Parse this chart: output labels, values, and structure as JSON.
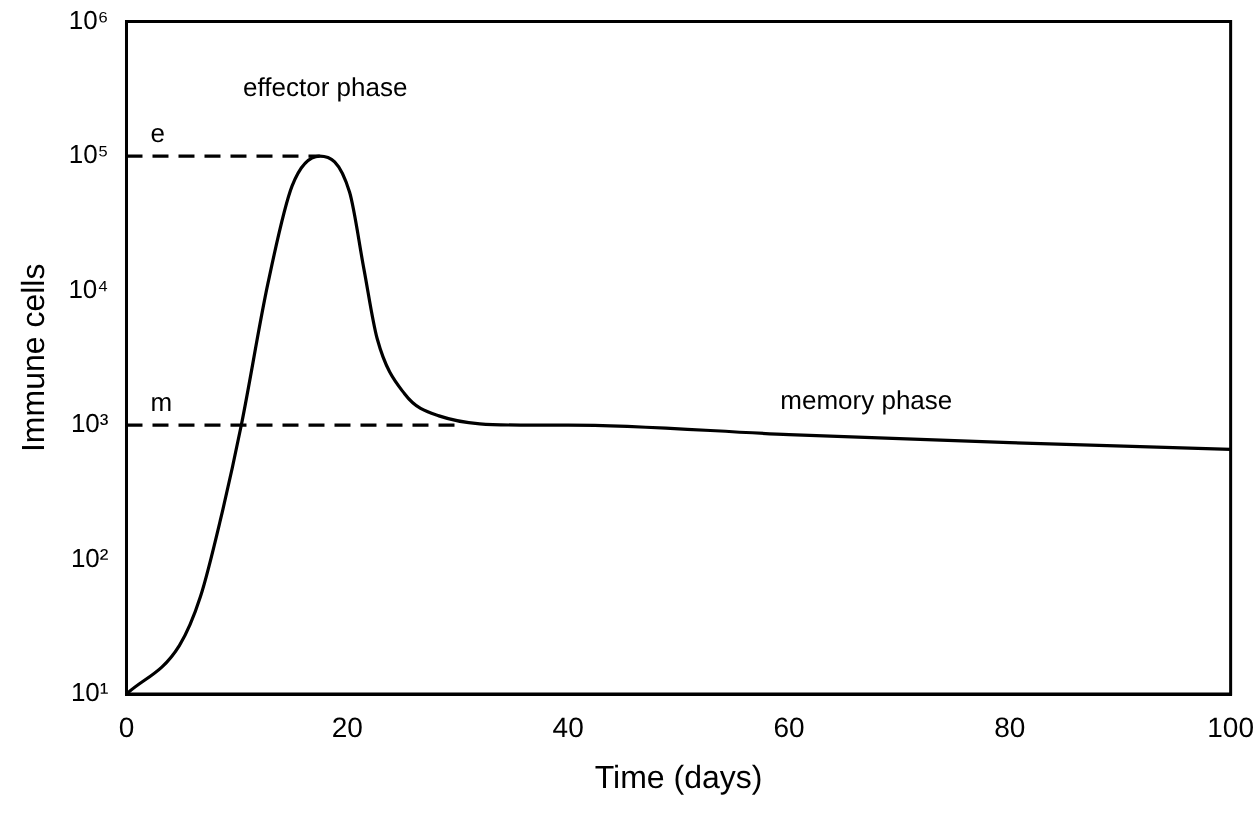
{
  "chart_data": {
    "type": "line",
    "xlabel": "Time (days)",
    "ylabel": "Immune cells",
    "log": "y",
    "grid": false,
    "legend": false,
    "marker": "none",
    "xlim": [
      0,
      100
    ],
    "xticks": [
      0,
      20,
      40,
      60,
      80,
      100
    ],
    "ylim": [
      10,
      1000000
    ],
    "yticks": [
      {
        "value": 10,
        "label": "10¹"
      },
      {
        "value": 100,
        "label": "10²"
      },
      {
        "value": 1000,
        "label": "10³"
      },
      {
        "value": 10000,
        "label": "10⁴"
      },
      {
        "value": 100000,
        "label": "10⁵"
      },
      {
        "value": 1000000,
        "label": "10⁶"
      }
    ],
    "series": [
      {
        "color": "#000000",
        "line_style": "solid",
        "x": [
          0,
          4.8,
          6.7,
          8.5,
          10.4,
          12.8,
          15,
          17.5,
          20.2,
          21.5,
          22.7,
          25.2,
          28.3,
          35.7,
          40,
          60,
          80,
          100
        ],
        "values": [
          10,
          23,
          53,
          196,
          1000,
          11200,
          60000,
          100000,
          54000,
          14500,
          4400,
          1700,
          1170,
          1000,
          1000,
          850,
          740,
          660
        ]
      },
      {
        "name": "e",
        "color": "#000000",
        "line_style": "dashed",
        "x": [
          0,
          17.5
        ],
        "values": [
          100000,
          100000
        ]
      },
      {
        "name": "m",
        "color": "#000000",
        "line_style": "dashed",
        "x": [
          0,
          30
        ],
        "values": [
          1000,
          1000
        ]
      }
    ],
    "annotations": [
      "effector phase",
      "memory phase"
    ]
  }
}
